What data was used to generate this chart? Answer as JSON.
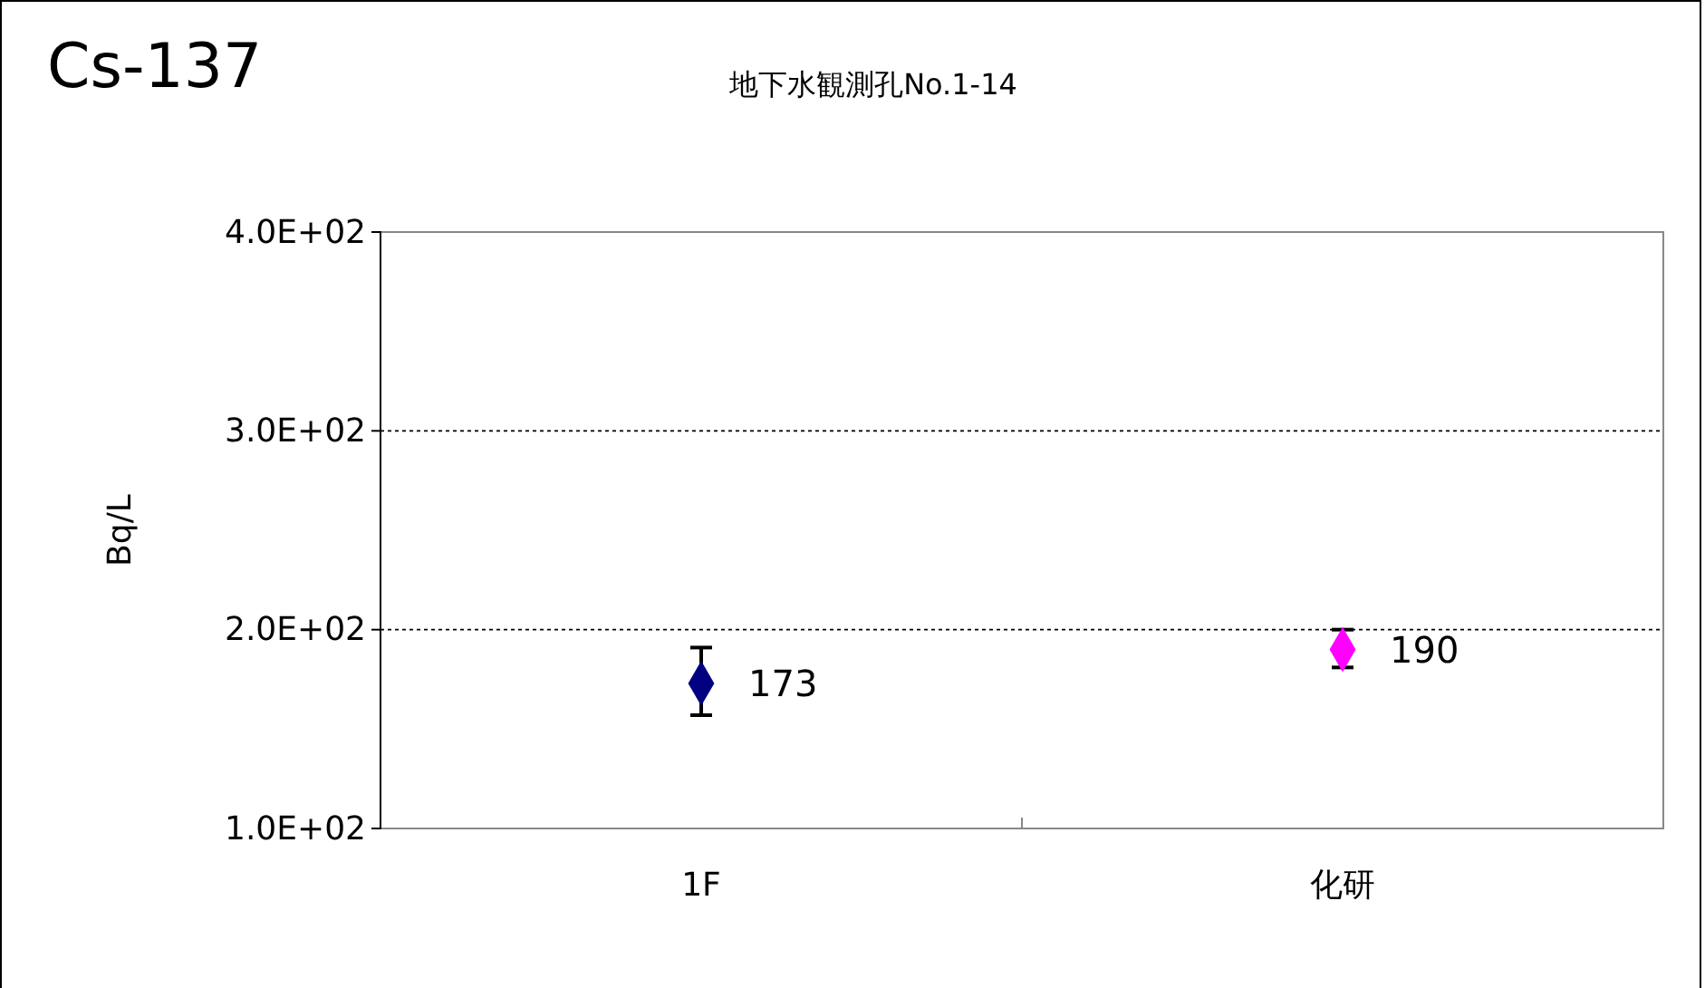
{
  "chart_data": {
    "type": "scatter",
    "title": "Cs-137",
    "subtitle": "地下水観測孔No.1-14",
    "ylabel": "Bq/L",
    "categories": [
      "1F",
      "化研"
    ],
    "series": [
      {
        "colors": [
          "#000080",
          "#ff00ff"
        ],
        "values": [
          173,
          190
        ],
        "errors": [
          [
            157,
            191
          ],
          [
            181,
            200
          ]
        ]
      }
    ],
    "ylim": [
      100,
      400
    ],
    "yticks": [
      {
        "value": 100,
        "label": "1.0E+02"
      },
      {
        "value": 200,
        "label": "2.0E+02"
      },
      {
        "value": 300,
        "label": "3.0E+02"
      },
      {
        "value": 400,
        "label": "4.0E+02"
      }
    ],
    "grid": "y",
    "marker": "diamond",
    "data_labels": true
  }
}
